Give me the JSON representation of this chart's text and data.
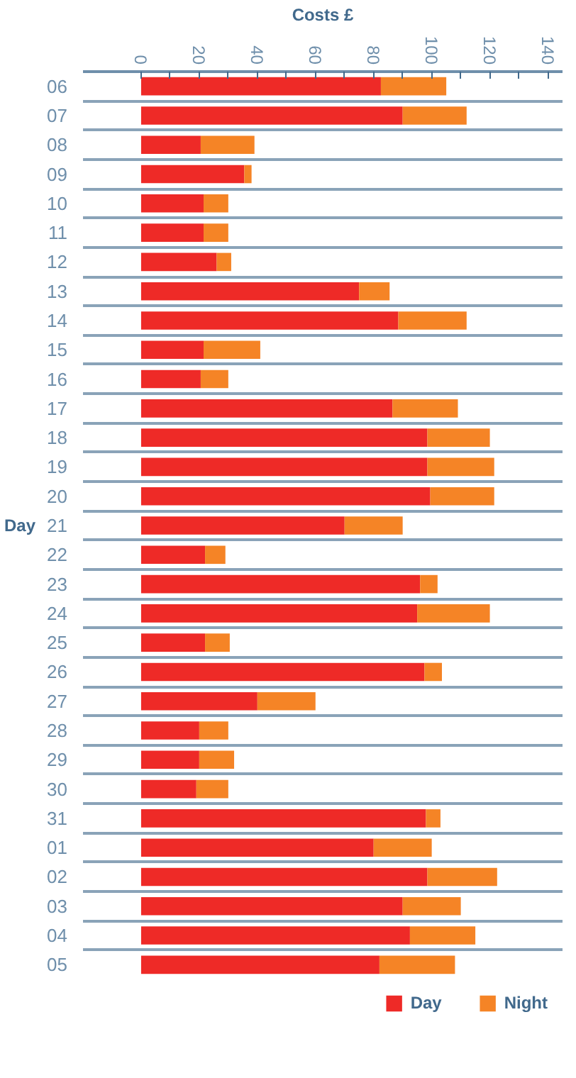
{
  "chart_data": {
    "type": "bar",
    "orientation": "horizontal",
    "stacked": true,
    "xlabel": "Costs £",
    "ylabel": "Day",
    "categories": [
      "06",
      "07",
      "08",
      "09",
      "10",
      "11",
      "12",
      "13",
      "14",
      "15",
      "16",
      "17",
      "18",
      "19",
      "20",
      "21",
      "22",
      "23",
      "24",
      "25",
      "26",
      "27",
      "28",
      "29",
      "30",
      "31",
      "01",
      "02",
      "03",
      "04",
      "05"
    ],
    "series": [
      {
        "name": "Day",
        "color": "#ee2a27",
        "values": [
          82.5,
          90,
          20.5,
          35.5,
          21.5,
          21.5,
          26,
          75,
          88.5,
          21.5,
          20.5,
          86.5,
          98.5,
          98.5,
          99.5,
          70,
          22,
          96,
          95,
          22,
          97.5,
          40,
          20,
          20,
          19,
          98,
          80,
          98.5,
          90,
          92.5,
          82
        ]
      },
      {
        "name": "Night",
        "color": "#f58426",
        "values": [
          22.5,
          22,
          18.5,
          2.5,
          8.5,
          8.5,
          5,
          10.5,
          23.5,
          19.5,
          9.5,
          22.5,
          21.5,
          23,
          22,
          20,
          7,
          6,
          25,
          8.5,
          6,
          20,
          10,
          12,
          11,
          5,
          20,
          24,
          20,
          22.5,
          26
        ]
      }
    ],
    "xlim": [
      -20,
      145
    ],
    "xticks": [
      0,
      {
        "value": 10,
        "label": null
      },
      20,
      {
        "value": 30,
        "label": null
      },
      40,
      {
        "value": 50,
        "label": null
      },
      60,
      {
        "value": 70,
        "label": null
      },
      80,
      {
        "value": 90,
        "label": null
      },
      100,
      {
        "value": 110,
        "label": null
      },
      120,
      {
        "value": 130,
        "label": null
      },
      140
    ],
    "grid": "y",
    "legend": "bottom"
  }
}
